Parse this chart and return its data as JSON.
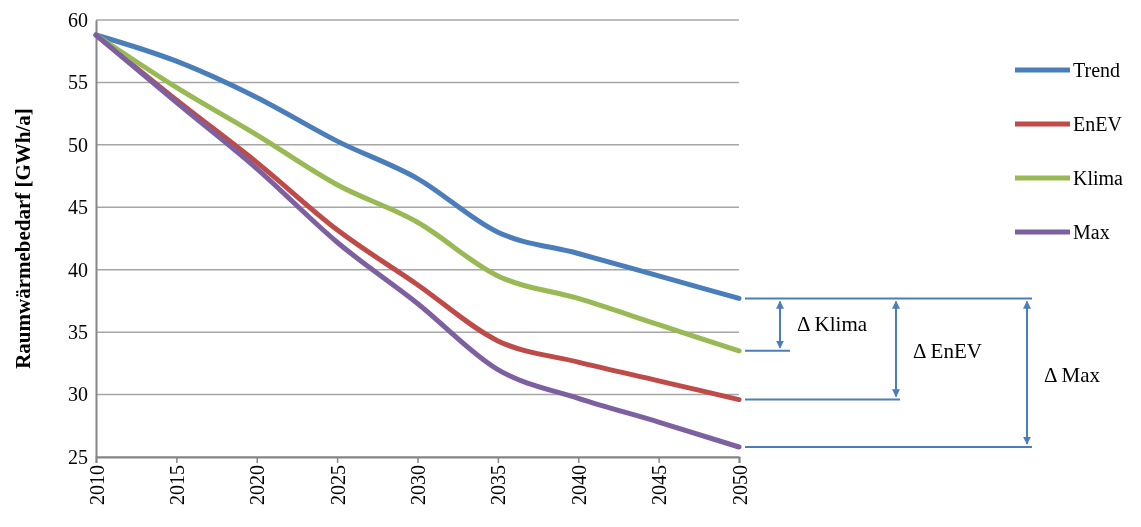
{
  "chart_data": {
    "type": "line",
    "ylabel": "Raumwärmebedarf [GWh/a]",
    "x": [
      2010,
      2015,
      2020,
      2025,
      2030,
      2035,
      2040,
      2045,
      2050
    ],
    "xlim": [
      2010,
      2050
    ],
    "xticks": [
      2010,
      2015,
      2020,
      2025,
      2030,
      2035,
      2040,
      2045,
      2050
    ],
    "ylim": [
      25,
      60
    ],
    "yticks": [
      25,
      30,
      35,
      40,
      45,
      50,
      55,
      60
    ],
    "grid": "y",
    "legend": "right",
    "marker": "none",
    "line_style": "solid",
    "series": [
      {
        "name": "Trend",
        "color": "#4a7ebb",
        "values": [
          58.8,
          56.7,
          53.8,
          50.3,
          47.3,
          43.0,
          41.3,
          39.5,
          37.7
        ]
      },
      {
        "name": "EnEV",
        "color": "#be4b48",
        "values": [
          58.8,
          53.6,
          48.6,
          43.2,
          38.8,
          34.3,
          32.6,
          31.1,
          29.6
        ]
      },
      {
        "name": "Klima",
        "color": "#98b954",
        "values": [
          58.8,
          54.6,
          50.8,
          46.8,
          43.8,
          39.5,
          37.7,
          35.6,
          33.5
        ]
      },
      {
        "name": "Max",
        "color": "#7d60a0",
        "values": [
          58.8,
          53.4,
          48.1,
          42.2,
          37.3,
          32.0,
          29.7,
          27.8,
          25.8
        ]
      }
    ],
    "annotations": [
      "Δ Klima",
      "Δ EnEV",
      "Δ Max"
    ]
  }
}
